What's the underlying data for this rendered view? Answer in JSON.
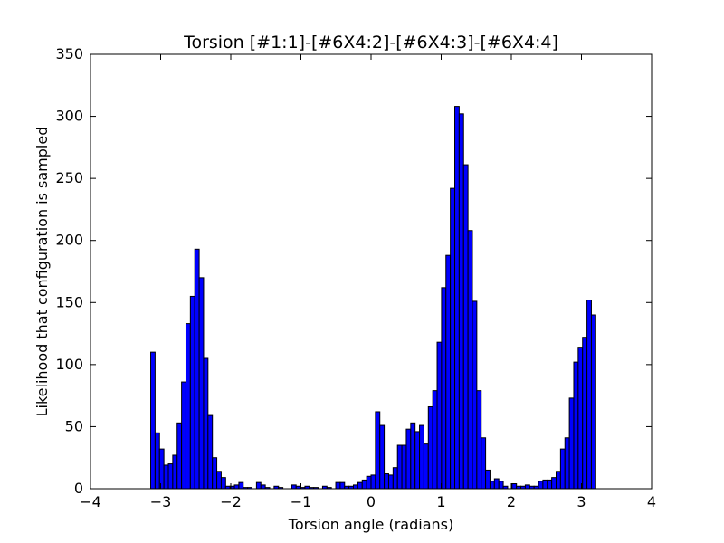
{
  "chart_data": {
    "type": "bar",
    "title": "Torsion [#1:1]-[#6X4:2]-[#6X4:3]-[#6X4:4]",
    "xlabel": "Torsion angle (radians)",
    "ylabel": "Likelihood that configuration is sampled",
    "xlim": [
      -4,
      4
    ],
    "ylim": [
      0,
      350
    ],
    "xticks": [
      -4,
      -3,
      -2,
      -1,
      0,
      1,
      2,
      3,
      4
    ],
    "xtick_labels": [
      "−4",
      "−3",
      "−2",
      "−1",
      "0",
      "1",
      "2",
      "3",
      "4"
    ],
    "yticks": [
      0,
      50,
      100,
      150,
      200,
      250,
      300,
      350
    ],
    "ytick_labels": [
      "0",
      "50",
      "100",
      "150",
      "200",
      "250",
      "300",
      "350"
    ],
    "grid": false,
    "bar_color": "#0000ff",
    "bin_start": -3.1416,
    "bin_width": 0.06283,
    "values": [
      110,
      45,
      32,
      19,
      20,
      27,
      53,
      86,
      133,
      155,
      193,
      170,
      105,
      59,
      25,
      14,
      9,
      2,
      2,
      3,
      5,
      1,
      1,
      0,
      5,
      3,
      1,
      0,
      2,
      1,
      0,
      0,
      3,
      2,
      1,
      2,
      1,
      1,
      0,
      2,
      1,
      0,
      5,
      5,
      2,
      2,
      3,
      5,
      7,
      10,
      11,
      62,
      51,
      12,
      11,
      17,
      35,
      35,
      48,
      53,
      46,
      51,
      36,
      66,
      79,
      118,
      162,
      188,
      242,
      308,
      302,
      261,
      208,
      151,
      79,
      41,
      15,
      6,
      8,
      6,
      2,
      0,
      4,
      2,
      2,
      3,
      2,
      2,
      6,
      7,
      7,
      9,
      14,
      32,
      41,
      73,
      102,
      114,
      122,
      152,
      140
    ]
  }
}
